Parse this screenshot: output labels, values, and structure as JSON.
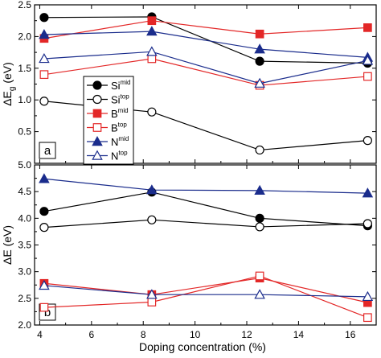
{
  "chart_data": [
    {
      "type": "line",
      "panel_label": "a",
      "ylabel": "ΔE",
      "ylabel_sub": "g",
      "ylabel_unit": " (eV)",
      "ylim": [
        0.0,
        2.5
      ],
      "yticks": [
        0.5,
        1.0,
        1.5,
        2.0,
        2.5
      ],
      "ytick_labels": [
        "0.5",
        "1.0",
        "1.5",
        "2.0",
        "2.5"
      ],
      "xlim": [
        3.8,
        17.0
      ],
      "x": [
        4.17,
        8.33,
        12.5,
        16.67
      ],
      "legend_position": "center-left",
      "series": [
        {
          "name": "Si",
          "sup": "mid",
          "color": "#000000",
          "marker": "circle",
          "filled": true,
          "values": [
            2.3,
            2.31,
            1.61,
            1.58
          ]
        },
        {
          "name": "Si",
          "sup": "top",
          "color": "#000000",
          "marker": "circle",
          "filled": false,
          "values": [
            0.98,
            0.81,
            0.21,
            0.36
          ]
        },
        {
          "name": "B",
          "sup": "mid",
          "color": "#e32727",
          "marker": "square",
          "filled": true,
          "values": [
            1.97,
            2.25,
            2.04,
            2.14
          ]
        },
        {
          "name": "B",
          "sup": "top",
          "color": "#e32727",
          "marker": "square",
          "filled": false,
          "values": [
            1.4,
            1.65,
            1.23,
            1.37
          ]
        },
        {
          "name": "N",
          "sup": "mid",
          "color": "#1a2c8c",
          "marker": "triangle",
          "filled": true,
          "values": [
            2.03,
            2.08,
            1.8,
            1.67
          ]
        },
        {
          "name": "N",
          "sup": "top",
          "color": "#1a2c8c",
          "marker": "triangle",
          "filled": false,
          "values": [
            1.65,
            1.76,
            1.26,
            1.62
          ]
        }
      ]
    },
    {
      "type": "line",
      "panel_label": "b",
      "xlabel": "Doping concentration (%)",
      "ylabel": "ΔE (eV)",
      "ylim": [
        2.0,
        5.0
      ],
      "yticks": [
        2.0,
        2.5,
        3.0,
        3.5,
        4.0,
        4.5,
        5.0
      ],
      "ytick_labels": [
        "2.0",
        "2.5",
        "3.0",
        "3.5",
        "4.0",
        "4.5",
        "5.0"
      ],
      "xlim": [
        3.8,
        17.0
      ],
      "xticks": [
        4,
        6,
        8,
        10,
        12,
        14,
        16
      ],
      "xtick_labels": [
        "4",
        "6",
        "8",
        "10",
        "12",
        "14",
        "16"
      ],
      "x": [
        4.17,
        8.33,
        12.5,
        16.67
      ],
      "series": [
        {
          "color": "#000000",
          "marker": "circle",
          "filled": true,
          "values": [
            4.13,
            4.49,
            4.0,
            3.86
          ]
        },
        {
          "color": "#000000",
          "marker": "circle",
          "filled": false,
          "values": [
            3.83,
            3.97,
            3.84,
            3.9
          ]
        },
        {
          "color": "#e32727",
          "marker": "square",
          "filled": true,
          "values": [
            2.78,
            2.57,
            2.88,
            2.42
          ]
        },
        {
          "color": "#e32727",
          "marker": "square",
          "filled": false,
          "values": [
            2.33,
            2.43,
            2.92,
            2.14
          ]
        },
        {
          "color": "#1a2c8c",
          "marker": "triangle",
          "filled": true,
          "values": [
            4.74,
            4.53,
            4.52,
            4.47
          ]
        },
        {
          "color": "#1a2c8c",
          "marker": "triangle",
          "filled": false,
          "values": [
            2.74,
            2.57,
            2.57,
            2.53
          ]
        }
      ]
    }
  ]
}
